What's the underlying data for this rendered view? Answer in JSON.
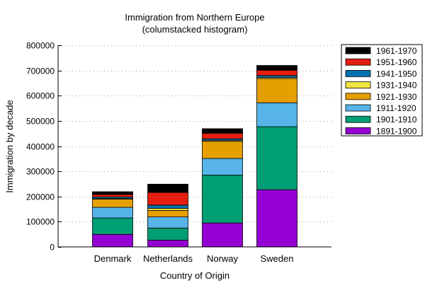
{
  "chart_data": {
    "type": "bar",
    "stacked": true,
    "title": "Immigration from Northern Europe",
    "subtitle": "(columstacked histogram)",
    "xlabel": "Country of Origin",
    "ylabel": "Immigration by decade",
    "categories": [
      "Denmark",
      "Netherlands",
      "Norway",
      "Sweden"
    ],
    "ylim": [
      0,
      800000
    ],
    "yticks": [
      0,
      100000,
      200000,
      300000,
      400000,
      500000,
      600000,
      700000,
      800000
    ],
    "grid": "horizontal-dotted",
    "legend_position": "right",
    "series": [
      {
        "name": "1891-1900",
        "color": "#9400d3",
        "values": [
          50000,
          27000,
          95000,
          227000
        ]
      },
      {
        "name": "1901-1910",
        "color": "#009e73",
        "values": [
          65000,
          48000,
          190000,
          250000
        ]
      },
      {
        "name": "1911-1920",
        "color": "#56b4e9",
        "values": [
          42000,
          44000,
          66000,
          95000
        ]
      },
      {
        "name": "1921-1930",
        "color": "#e69f00",
        "values": [
          33000,
          26000,
          68000,
          96000
        ]
      },
      {
        "name": "1931-1940",
        "color": "#f0e442",
        "values": [
          2000,
          8000,
          4000,
          4000
        ]
      },
      {
        "name": "1941-1950",
        "color": "#0072b2",
        "values": [
          6000,
          13000,
          6000,
          8000
        ]
      },
      {
        "name": "1951-1960",
        "color": "#e51e10",
        "values": [
          10000,
          50000,
          22000,
          21000
        ]
      },
      {
        "name": "1961-1970",
        "color": "#000000",
        "values": [
          11000,
          33000,
          18000,
          19000
        ]
      }
    ]
  }
}
